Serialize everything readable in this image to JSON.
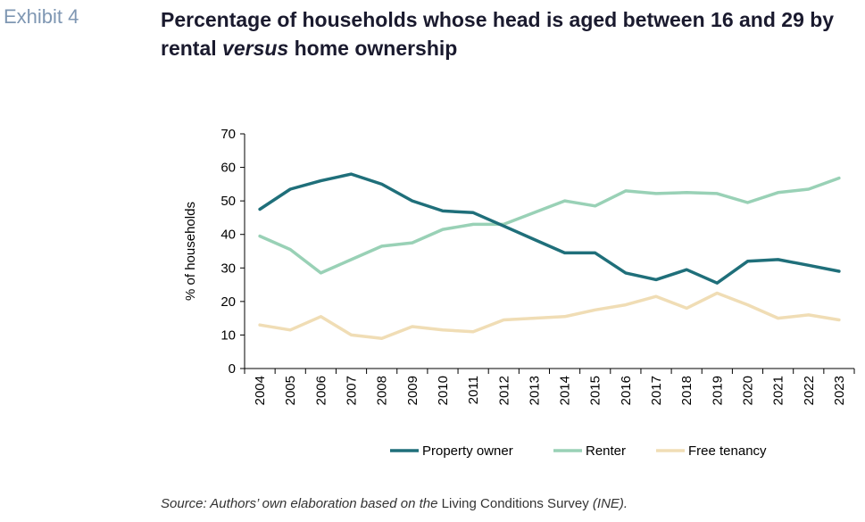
{
  "header": {
    "exhibit": "Exhibit 4",
    "title_part1": "Percentage of households whose head is aged between 16 and 29 by rental ",
    "title_emph": "versus",
    "title_part2": " home ownership"
  },
  "source": {
    "prefix": "Source: Authors’ own elaboration based on the ",
    "survey": "Living Conditions Survey",
    "suffix": " (INE)."
  },
  "chart_data": {
    "type": "line",
    "ylabel": "% of households",
    "ylim": [
      0,
      70
    ],
    "yticks": [
      0,
      10,
      20,
      30,
      40,
      50,
      60,
      70
    ],
    "categories": [
      "2004",
      "2005",
      "2006",
      "2007",
      "2008",
      "2009",
      "2010",
      "2011",
      "2012",
      "2013",
      "2014",
      "2015",
      "2016",
      "2017",
      "2018",
      "2019",
      "2020",
      "2021",
      "2022",
      "2023"
    ],
    "legend_position": "bottom",
    "series": [
      {
        "name": "Property owner",
        "color": "#1f6f7a",
        "values": [
          47.5,
          53.5,
          56,
          58,
          55,
          50,
          47,
          46.5,
          42.5,
          38.5,
          34.5,
          34.5,
          28.5,
          26.5,
          29.5,
          25.5,
          32,
          32.5,
          30.8,
          29
        ]
      },
      {
        "name": "Renter",
        "color": "#99d1b6",
        "values": [
          39.5,
          35.5,
          28.5,
          32.5,
          36.5,
          37.5,
          41.5,
          43,
          43,
          46.5,
          50,
          48.5,
          53,
          52.2,
          52.5,
          52.2,
          49.5,
          52.5,
          53.5,
          56.8
        ]
      },
      {
        "name": "Free tenancy",
        "color": "#f0ddb5",
        "values": [
          13,
          11.5,
          15.5,
          10,
          9,
          12.5,
          11.5,
          11,
          14.5,
          15,
          15.5,
          17.5,
          19,
          21.5,
          18,
          22.5,
          19,
          15,
          16,
          14.5
        ]
      }
    ]
  }
}
